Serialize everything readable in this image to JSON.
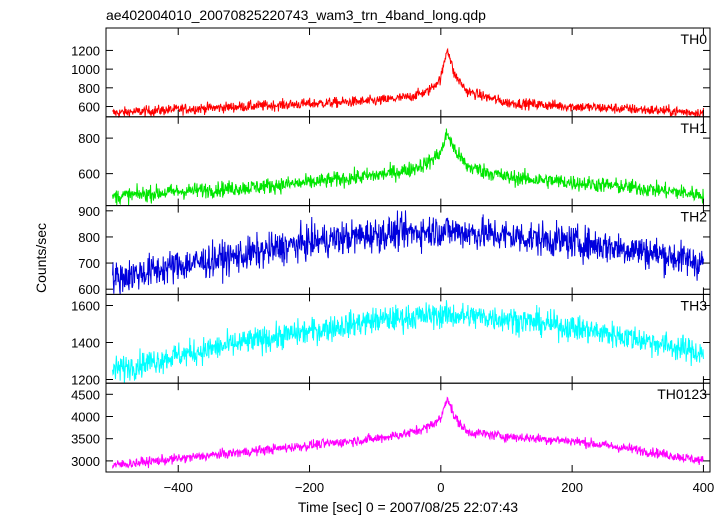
{
  "title": "ae402004010_20070825220743_wam3_trn_4band_long.qdp",
  "xlabel": "Time [sec] 0 = 2007/08/25 22:07:43",
  "ylabel": "Counts/sec",
  "chart_data": {
    "type": "line",
    "title": "ae402004010_20070825220743_wam3_trn_4band_long.qdp",
    "xlabel": "Time [sec] 0 = 2007/08/25 22:07:43",
    "ylabel": "Counts/sec",
    "xlim": [
      -510,
      410
    ],
    "xticks": [
      -400,
      -200,
      0,
      200,
      400
    ],
    "grid": false,
    "series": [
      {
        "name": "TH0",
        "color": "#ff0000",
        "ylim": [
          490,
          1440
        ],
        "yticks": [
          600,
          800,
          1000,
          1200
        ],
        "x": [
          -500,
          -400,
          -300,
          -200,
          -100,
          -50,
          -20,
          0,
          10,
          20,
          40,
          100,
          200,
          300,
          400
        ],
        "y": [
          530,
          570,
          600,
          630,
          660,
          700,
          760,
          900,
          1230,
          950,
          760,
          640,
          600,
          570,
          530
        ],
        "noise": 28
      },
      {
        "name": "TH1",
        "color": "#00e600",
        "ylim": [
          420,
          920
        ],
        "yticks": [
          600,
          800
        ],
        "x": [
          -500,
          -400,
          -300,
          -200,
          -100,
          -50,
          -20,
          0,
          10,
          20,
          40,
          100,
          200,
          300,
          400
        ],
        "y": [
          470,
          500,
          520,
          550,
          590,
          620,
          660,
          720,
          830,
          740,
          640,
          580,
          550,
          520,
          480
        ],
        "noise": 22
      },
      {
        "name": "TH2",
        "color": "#0000dd",
        "ylim": [
          580,
          920
        ],
        "yticks": [
          600,
          700,
          800,
          900
        ],
        "x": [
          -500,
          -400,
          -300,
          -200,
          -100,
          0,
          100,
          200,
          300,
          400
        ],
        "y": [
          640,
          690,
          730,
          780,
          810,
          825,
          805,
          780,
          750,
          700
        ],
        "noise": 32
      },
      {
        "name": "TH3",
        "color": "#00ffff",
        "ylim": [
          1180,
          1660
        ],
        "yticks": [
          1200,
          1400,
          1600
        ],
        "x": [
          -500,
          -400,
          -300,
          -200,
          -100,
          0,
          100,
          200,
          300,
          400
        ],
        "y": [
          1250,
          1330,
          1400,
          1460,
          1520,
          1550,
          1530,
          1480,
          1420,
          1340
        ],
        "noise": 35
      },
      {
        "name": "TH0123",
        "color": "#ff00ff",
        "ylim": [
          2750,
          4750
        ],
        "yticks": [
          3000,
          3500,
          4000,
          4500
        ],
        "x": [
          -500,
          -400,
          -300,
          -200,
          -100,
          -50,
          -20,
          0,
          10,
          20,
          40,
          100,
          200,
          300,
          400
        ],
        "y": [
          2900,
          3050,
          3200,
          3350,
          3500,
          3620,
          3760,
          3950,
          4450,
          4000,
          3650,
          3550,
          3450,
          3250,
          3000
        ],
        "noise": 55
      }
    ]
  }
}
